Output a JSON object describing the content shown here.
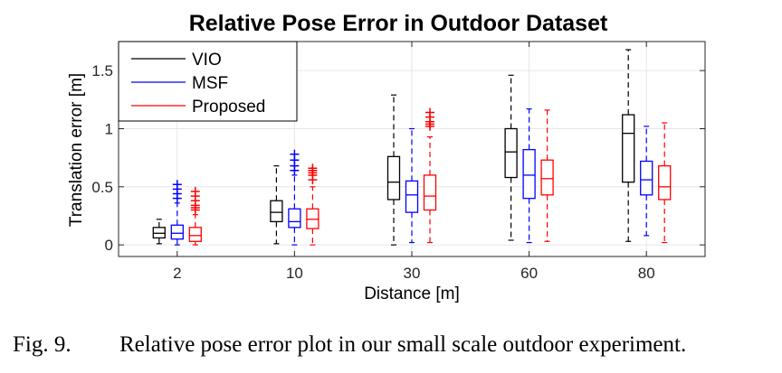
{
  "chart_data": {
    "type": "boxplot",
    "title": "Relative Pose Error in Outdoor Dataset",
    "xlabel": "Distance [m]",
    "ylabel": "Translation error [m]",
    "ylim": [
      -0.1,
      1.75
    ],
    "yticks": [
      0,
      0.5,
      1,
      1.5
    ],
    "ytick_labels": [
      "0",
      "0.5",
      "1",
      "1.5"
    ],
    "categories": [
      "2",
      "10",
      "30",
      "60",
      "80"
    ],
    "grid": true,
    "legend_position": "top-left",
    "series": [
      {
        "name": "VIO",
        "color": "#000000",
        "boxes": [
          {
            "min": 0.01,
            "q1": 0.06,
            "median": 0.1,
            "q3": 0.15,
            "max": 0.22,
            "outliers": []
          },
          {
            "min": 0.01,
            "q1": 0.2,
            "median": 0.28,
            "q3": 0.38,
            "max": 0.68,
            "outliers": []
          },
          {
            "min": 0.0,
            "q1": 0.39,
            "median": 0.54,
            "q3": 0.76,
            "max": 1.29,
            "outliers": []
          },
          {
            "min": 0.04,
            "q1": 0.58,
            "median": 0.8,
            "q3": 1.0,
            "max": 1.46,
            "outliers": []
          },
          {
            "min": 0.03,
            "q1": 0.54,
            "median": 0.96,
            "q3": 1.12,
            "max": 1.68,
            "outliers": []
          }
        ]
      },
      {
        "name": "MSF",
        "color": "#0000ff",
        "boxes": [
          {
            "min": 0.0,
            "q1": 0.05,
            "median": 0.1,
            "q3": 0.17,
            "max": 0.36,
            "outliers": [
              0.4,
              0.44,
              0.48,
              0.52
            ]
          },
          {
            "min": 0.0,
            "q1": 0.15,
            "median": 0.2,
            "q3": 0.31,
            "max": 0.6,
            "outliers": [
              0.64,
              0.68,
              0.73,
              0.78
            ]
          },
          {
            "min": 0.02,
            "q1": 0.28,
            "median": 0.43,
            "q3": 0.55,
            "max": 1.0,
            "outliers": []
          },
          {
            "min": 0.02,
            "q1": 0.4,
            "median": 0.6,
            "q3": 0.82,
            "max": 1.17,
            "outliers": []
          },
          {
            "min": 0.08,
            "q1": 0.43,
            "median": 0.56,
            "q3": 0.72,
            "max": 1.02,
            "outliers": []
          }
        ]
      },
      {
        "name": "Proposed",
        "color": "#ff0000",
        "boxes": [
          {
            "min": 0.0,
            "q1": 0.03,
            "median": 0.08,
            "q3": 0.15,
            "max": 0.26,
            "outliers": [
              0.3,
              0.32,
              0.34,
              0.38,
              0.42,
              0.46
            ]
          },
          {
            "min": 0.0,
            "q1": 0.14,
            "median": 0.22,
            "q3": 0.31,
            "max": 0.5,
            "outliers": [
              0.56,
              0.6,
              0.62,
              0.64,
              0.66
            ]
          },
          {
            "min": 0.02,
            "q1": 0.3,
            "median": 0.42,
            "q3": 0.6,
            "max": 0.93,
            "outliers": [
              1.02,
              1.04,
              1.06,
              1.1,
              1.14
            ]
          },
          {
            "min": 0.03,
            "q1": 0.43,
            "median": 0.57,
            "q3": 0.73,
            "max": 1.16,
            "outliers": []
          },
          {
            "min": 0.02,
            "q1": 0.39,
            "median": 0.5,
            "q3": 0.68,
            "max": 1.05,
            "outliers": []
          }
        ]
      }
    ]
  },
  "caption": {
    "label": "Fig. 9.",
    "text": "Relative pose error plot in our small scale outdoor experiment."
  }
}
